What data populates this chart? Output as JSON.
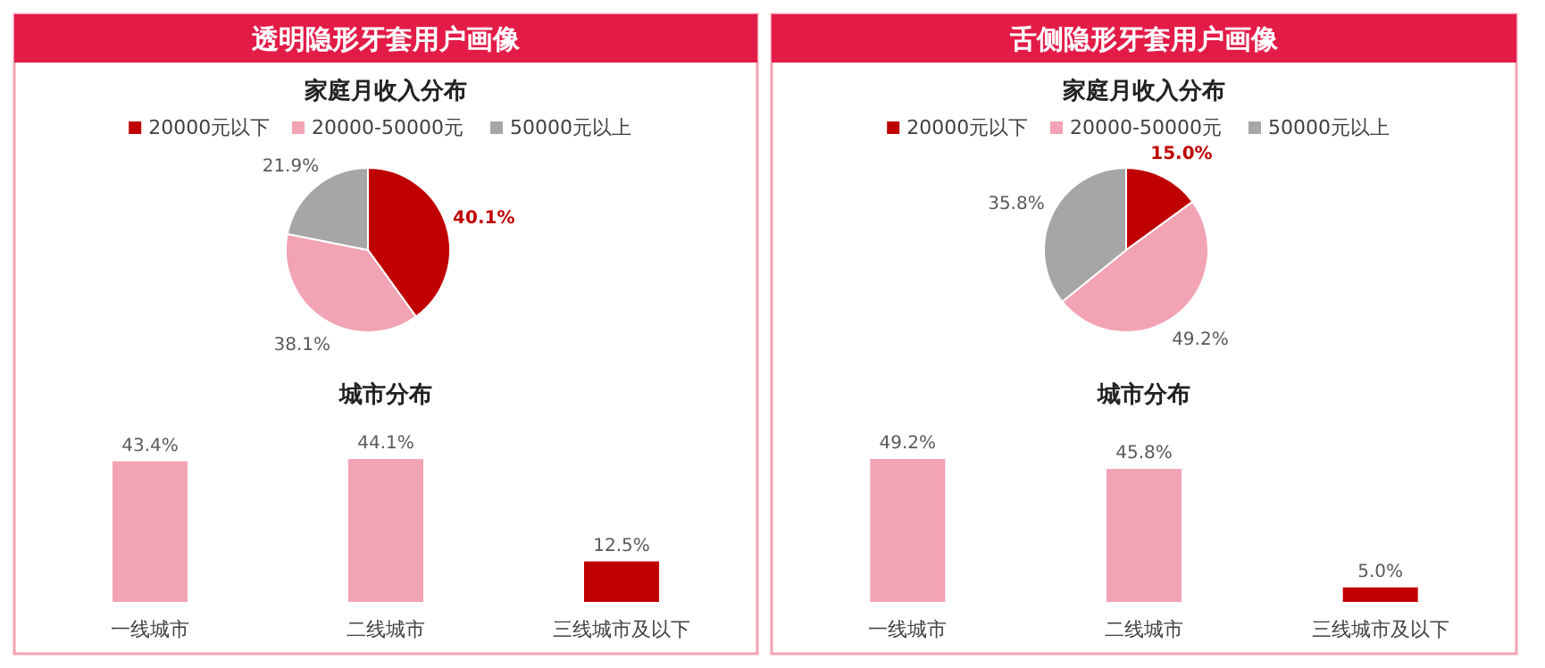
{
  "chart_data": [
    {
      "type": "pie",
      "title": "透明隐形牙套用户画像",
      "subtitle": "家庭月收入分布",
      "categories": [
        "20000元以下",
        "20000-50000元",
        "50000元以上"
      ],
      "values": [
        40.1,
        38.1,
        21.9
      ],
      "value_labels": [
        "40.1%",
        "38.1%",
        "21.9%"
      ],
      "colors": [
        "#c00000",
        "#f2a3b4",
        "#a6a6a6"
      ],
      "legend": "top"
    },
    {
      "type": "bar",
      "title": "城市分布",
      "categories": [
        "一线城市",
        "二线城市",
        "三线城市及以下"
      ],
      "values": [
        43.4,
        44.1,
        12.5
      ],
      "value_labels": [
        "43.4%",
        "44.1%",
        "12.5%"
      ],
      "colors": [
        "#f2a3b4",
        "#f2a3b4",
        "#c00000"
      ]
    },
    {
      "type": "pie",
      "title": "舌侧隐形牙套用户画像",
      "subtitle": "家庭月收入分布",
      "categories": [
        "20000元以下",
        "20000-50000元",
        "50000元以上"
      ],
      "values": [
        15.0,
        49.2,
        35.8
      ],
      "value_labels": [
        "15.0%",
        "49.2%",
        "35.8%"
      ],
      "colors": [
        "#c00000",
        "#f2a3b4",
        "#a6a6a6"
      ],
      "legend": "top"
    },
    {
      "type": "bar",
      "title": "城市分布",
      "categories": [
        "一线城市",
        "二线城市",
        "三线城市及以下"
      ],
      "values": [
        49.2,
        45.8,
        5.0
      ],
      "value_labels": [
        "49.2%",
        "45.8%",
        "5.0%"
      ],
      "colors": [
        "#f2a3b4",
        "#f2a3b4",
        "#c00000"
      ]
    }
  ]
}
